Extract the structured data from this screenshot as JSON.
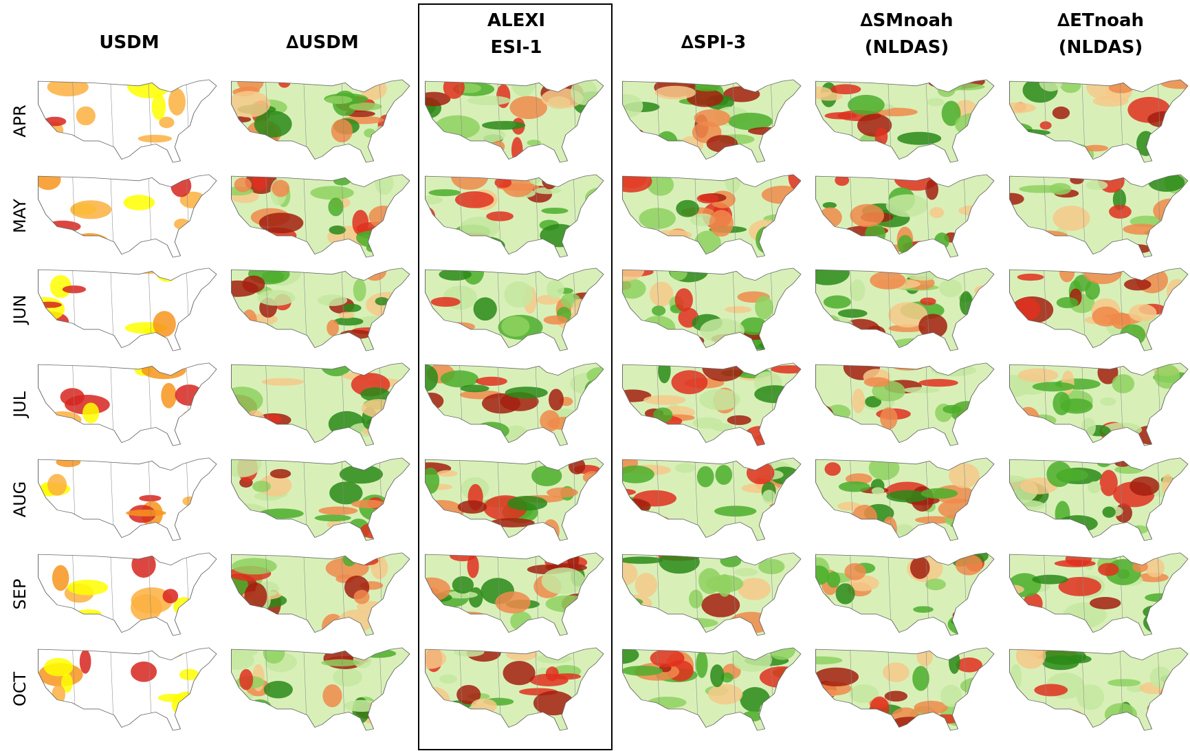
{
  "columns": [
    {
      "lines": [
        "USDM"
      ]
    },
    {
      "lines": [
        "∆USDM"
      ]
    },
    {
      "lines": [
        "ALEXI",
        "ESI-1"
      ]
    },
    {
      "lines": [
        "∆SPI-3"
      ]
    },
    {
      "lines": [
        "∆SMnoah",
        "(NLDAS)"
      ]
    },
    {
      "lines": [
        "∆ETnoah",
        "(NLDAS)"
      ]
    }
  ],
  "rows": [
    "APR",
    "MAY",
    "JUN",
    "JUL",
    "AUG",
    "SEP",
    "OCT"
  ]
}
